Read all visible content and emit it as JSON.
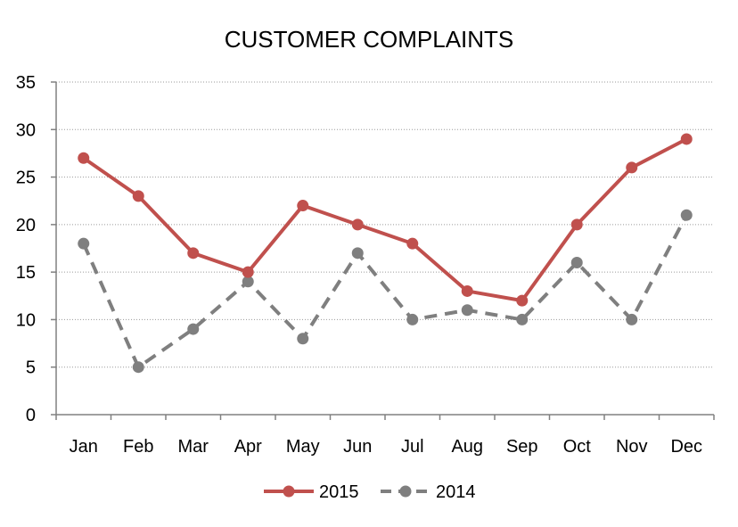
{
  "chart_data": {
    "type": "line",
    "title": "CUSTOMER COMPLAINTS",
    "categories": [
      "Jan",
      "Feb",
      "Mar",
      "Apr",
      "May",
      "Jun",
      "Jul",
      "Aug",
      "Sep",
      "Oct",
      "Nov",
      "Dec"
    ],
    "series": [
      {
        "name": "2015",
        "values": [
          27,
          23,
          17,
          15,
          22,
          20,
          18,
          13,
          12,
          20,
          26,
          29
        ],
        "color": "#c0504d",
        "line_style": "solid"
      },
      {
        "name": "2014",
        "values": [
          18,
          5,
          9,
          14,
          8,
          17,
          10,
          11,
          10,
          16,
          10,
          21
        ],
        "color": "#7f7f7f",
        "line_style": "dashed"
      }
    ],
    "ylim": [
      0,
      35
    ],
    "yticks": [
      0,
      5,
      10,
      15,
      20,
      25,
      30,
      35
    ],
    "grid": true,
    "legend_position": "bottom",
    "xlabel": "",
    "ylabel": ""
  }
}
